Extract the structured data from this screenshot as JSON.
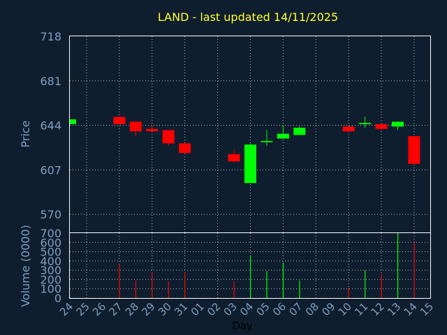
{
  "colors": {
    "background": "#0f1e2e",
    "plot_background": "#0f1e2e",
    "frame": "#ffffff",
    "grid": "#ffffff",
    "title": "#ffff33",
    "axis_text": "#7f9fc0",
    "xlabel_text": "#000000",
    "up": "#00ff00",
    "down": "#ff0000"
  },
  "chart_data": [
    {
      "type": "candlestick",
      "title": "LAND - last updated 14/11/2025",
      "ylabel": "Price",
      "ylim": [
        555,
        718
      ],
      "yticks": [
        "718",
        "681",
        "644",
        "607",
        "570"
      ],
      "ytick_values": [
        718,
        681,
        644,
        607,
        570
      ],
      "grid": true,
      "categories": [
        "24",
        "25",
        "26",
        "27",
        "28",
        "29",
        "30",
        "31",
        "01",
        "02",
        "03",
        "04",
        "05",
        "06",
        "07",
        "08",
        "09",
        "10",
        "11",
        "12",
        "13",
        "14",
        "15"
      ],
      "candles": [
        {
          "day": "24",
          "open": 645,
          "high": 649,
          "low": 645,
          "close": 649
        },
        {
          "day": "27",
          "open": 651,
          "high": 651,
          "low": 645,
          "close": 645
        },
        {
          "day": "28",
          "open": 647,
          "high": 647,
          "low": 635,
          "close": 639
        },
        {
          "day": "29",
          "open": 641,
          "high": 644,
          "low": 639,
          "close": 639
        },
        {
          "day": "30",
          "open": 640,
          "high": 640,
          "low": 627,
          "close": 629
        },
        {
          "day": "31",
          "open": 629,
          "high": 629,
          "low": 621,
          "close": 621
        },
        {
          "day": "03",
          "open": 620,
          "high": 624,
          "low": 613,
          "close": 614
        },
        {
          "day": "04",
          "open": 596,
          "high": 629,
          "low": 596,
          "close": 628
        },
        {
          "day": "05",
          "open": 630,
          "high": 640,
          "low": 627,
          "close": 631
        },
        {
          "day": "06",
          "open": 633,
          "high": 644,
          "low": 633,
          "close": 637
        },
        {
          "day": "07",
          "open": 636,
          "high": 643,
          "low": 636,
          "close": 642
        },
        {
          "day": "10",
          "open": 643,
          "high": 643,
          "low": 639,
          "close": 639
        },
        {
          "day": "11",
          "open": 645,
          "high": 651,
          "low": 642,
          "close": 646
        },
        {
          "day": "12",
          "open": 645,
          "high": 645,
          "low": 640,
          "close": 641
        },
        {
          "day": "13",
          "open": 643,
          "high": 647,
          "low": 640,
          "close": 647
        },
        {
          "day": "14",
          "open": 635,
          "high": 635,
          "low": 611,
          "close": 612
        }
      ]
    },
    {
      "type": "bar",
      "ylabel": "Volume (0000)",
      "xlabel": "Day",
      "ylim": [
        0,
        700
      ],
      "yticks": [
        "700",
        "600",
        "500",
        "400",
        "300",
        "200",
        "100",
        "0"
      ],
      "ytick_values": [
        700,
        600,
        500,
        400,
        300,
        200,
        100,
        0
      ],
      "grid": true,
      "categories": [
        "24",
        "25",
        "26",
        "27",
        "28",
        "29",
        "30",
        "31",
        "01",
        "02",
        "03",
        "04",
        "05",
        "06",
        "07",
        "08",
        "09",
        "10",
        "11",
        "12",
        "13",
        "14",
        "15"
      ],
      "bars": [
        {
          "day": "24",
          "value": 5,
          "direction": "up"
        },
        {
          "day": "27",
          "value": 370,
          "direction": "down"
        },
        {
          "day": "28",
          "value": 190,
          "direction": "down"
        },
        {
          "day": "29",
          "value": 280,
          "direction": "down"
        },
        {
          "day": "30",
          "value": 180,
          "direction": "down"
        },
        {
          "day": "31",
          "value": 280,
          "direction": "down"
        },
        {
          "day": "03",
          "value": 180,
          "direction": "down"
        },
        {
          "day": "04",
          "value": 460,
          "direction": "up"
        },
        {
          "day": "05",
          "value": 290,
          "direction": "up"
        },
        {
          "day": "06",
          "value": 380,
          "direction": "up"
        },
        {
          "day": "07",
          "value": 190,
          "direction": "up"
        },
        {
          "day": "10",
          "value": 110,
          "direction": "down"
        },
        {
          "day": "11",
          "value": 300,
          "direction": "up"
        },
        {
          "day": "12",
          "value": 260,
          "direction": "down"
        },
        {
          "day": "13",
          "value": 700,
          "direction": "up"
        },
        {
          "day": "14",
          "value": 600,
          "direction": "down"
        }
      ]
    }
  ]
}
